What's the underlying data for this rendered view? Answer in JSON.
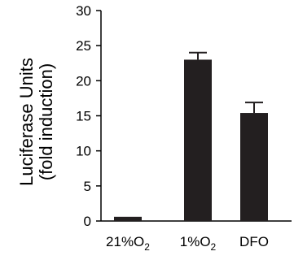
{
  "chart_data": {
    "type": "bar",
    "title": "",
    "ylabel_line1": "Luciferase Units",
    "ylabel_line2": "(fold induction)",
    "xlabel": "",
    "ylim": [
      0,
      30
    ],
    "yticks": [
      0,
      5,
      10,
      15,
      20,
      25,
      30
    ],
    "categories": [
      {
        "label": "21%O",
        "sub": "2"
      },
      {
        "label": "1%O",
        "sub": "2"
      },
      {
        "label": "DFO",
        "sub": ""
      }
    ],
    "values": [
      0.6,
      23.0,
      15.4
    ],
    "errors": [
      0,
      1.0,
      1.5
    ],
    "bar_color": "#231f20",
    "grid": false,
    "legend": "none"
  }
}
